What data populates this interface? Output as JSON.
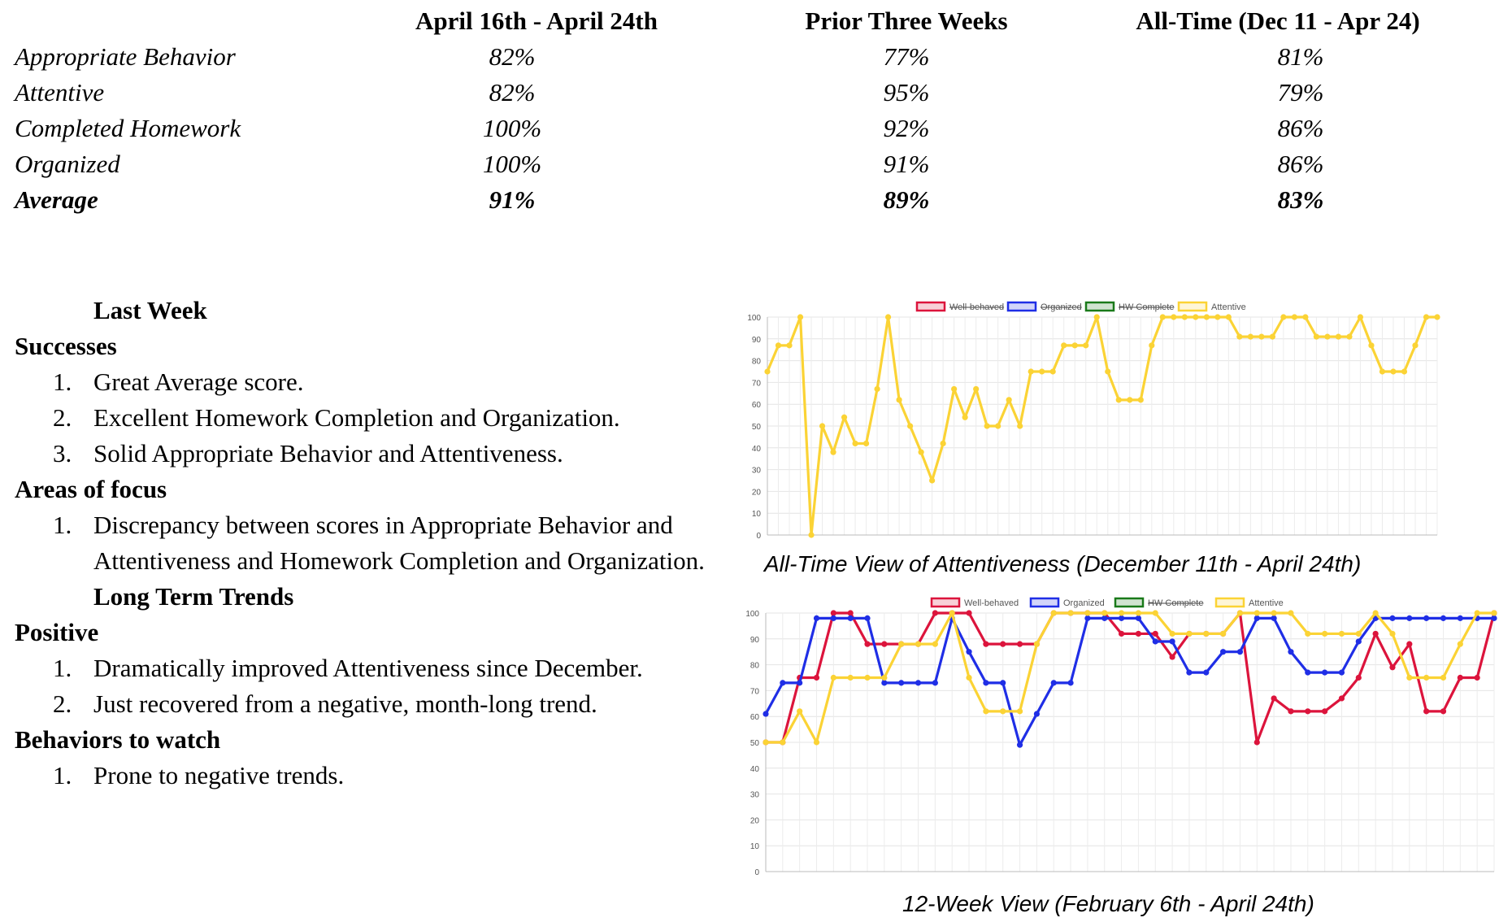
{
  "table": {
    "columns": [
      "April 16th - April 24th",
      "Prior Three Weeks",
      "All-Time (Dec 11 - Apr 24)"
    ],
    "rows": [
      {
        "label": "Appropriate Behavior",
        "values": [
          "82%",
          "77%",
          "81%"
        ]
      },
      {
        "label": "Attentive",
        "values": [
          "82%",
          "95%",
          "79%"
        ]
      },
      {
        "label": "Completed Homework",
        "values": [
          "100%",
          "92%",
          "86%"
        ]
      },
      {
        "label": "Organized",
        "values": [
          "100%",
          "91%",
          "86%"
        ]
      },
      {
        "label": "Average",
        "values": [
          "91%",
          "89%",
          "83%"
        ]
      }
    ]
  },
  "notes": {
    "last_week": "Last Week",
    "successes_title": "Successes",
    "successes": [
      "Great Average score.",
      "Excellent Homework Completion and Organization.",
      "Solid Appropriate Behavior and Attentiveness."
    ],
    "focus_title": "Areas of focus",
    "focus": [
      "Discrepancy between scores in Appropriate Behavior and Attentiveness and Homework Completion and Organization."
    ],
    "long_term": "Long Term Trends",
    "positive_title": "Positive",
    "positive": [
      "Dramatically improved Attentiveness since December.",
      "Just recovered from a negative, month-long trend."
    ],
    "watch_title": "Behaviors to watch",
    "watch": [
      "Prone to negative trends."
    ]
  },
  "colors": {
    "well_behaved": "#dc143c",
    "organized": "#1f2ee6",
    "hw_complete": "#1a7a1a",
    "attentive": "#fbd335"
  },
  "chart_data": [
    {
      "type": "line",
      "caption": "All-Time View of Attentiveness (December 11th - April 24th)",
      "legend": [
        {
          "name": "Well-behaved",
          "hidden": true
        },
        {
          "name": "Organized",
          "hidden": true
        },
        {
          "name": "HW Complete",
          "hidden": true
        },
        {
          "name": "Attentive",
          "hidden": false
        }
      ],
      "ylim": [
        0,
        100
      ],
      "yticks": [
        0,
        10,
        20,
        30,
        40,
        50,
        60,
        70,
        80,
        90,
        100
      ],
      "grid": true,
      "series": [
        {
          "name": "Attentive",
          "values": [
            75,
            87,
            87,
            100,
            0,
            50,
            38,
            54,
            42,
            42,
            67,
            100,
            62,
            50,
            38,
            25,
            42,
            67,
            54,
            67,
            50,
            50,
            62,
            50,
            75,
            75,
            75,
            87,
            87,
            87,
            100,
            75,
            62,
            62,
            62,
            87,
            100,
            100,
            100,
            100,
            100,
            100,
            100,
            91,
            91,
            91,
            91,
            100,
            100,
            100,
            91,
            91,
            91,
            91,
            100,
            87,
            75,
            75,
            75,
            87,
            100,
            100
          ]
        }
      ]
    },
    {
      "type": "line",
      "caption": "12-Week View (February 6th - April 24th)",
      "legend": [
        {
          "name": "Well-behaved",
          "hidden": false
        },
        {
          "name": "Organized",
          "hidden": false
        },
        {
          "name": "HW Complete",
          "hidden": true
        },
        {
          "name": "Attentive",
          "hidden": false
        }
      ],
      "ylim": [
        0,
        100
      ],
      "yticks": [
        0,
        10,
        20,
        30,
        40,
        50,
        60,
        70,
        80,
        90,
        100
      ],
      "grid": true,
      "series": [
        {
          "name": "Well-behaved",
          "values": [
            50,
            50,
            75,
            75,
            100,
            100,
            88,
            88,
            88,
            88,
            100,
            100,
            100,
            88,
            88,
            88,
            88,
            100,
            100,
            100,
            100,
            92,
            92,
            92,
            83,
            92,
            92,
            92,
            100,
            50,
            67,
            62,
            62,
            62,
            67,
            75,
            92,
            79,
            88,
            62,
            62,
            75,
            75,
            100
          ]
        },
        {
          "name": "Organized",
          "values": [
            61,
            73,
            73,
            98,
            98,
            98,
            98,
            73,
            73,
            73,
            73,
            98,
            85,
            73,
            73,
            49,
            61,
            73,
            73,
            98,
            98,
            98,
            98,
            89,
            89,
            77,
            77,
            85,
            85,
            98,
            98,
            85,
            77,
            77,
            77,
            89,
            98,
            98,
            98,
            98,
            98,
            98,
            98,
            98
          ]
        },
        {
          "name": "Attentive",
          "values": [
            50,
            50,
            62,
            50,
            75,
            75,
            75,
            75,
            88,
            88,
            88,
            100,
            75,
            62,
            62,
            62,
            88,
            100,
            100,
            100,
            100,
            100,
            100,
            100,
            92,
            92,
            92,
            92,
            100,
            100,
            100,
            100,
            92,
            92,
            92,
            92,
            100,
            92,
            75,
            75,
            75,
            88,
            100,
            100
          ]
        }
      ]
    }
  ]
}
